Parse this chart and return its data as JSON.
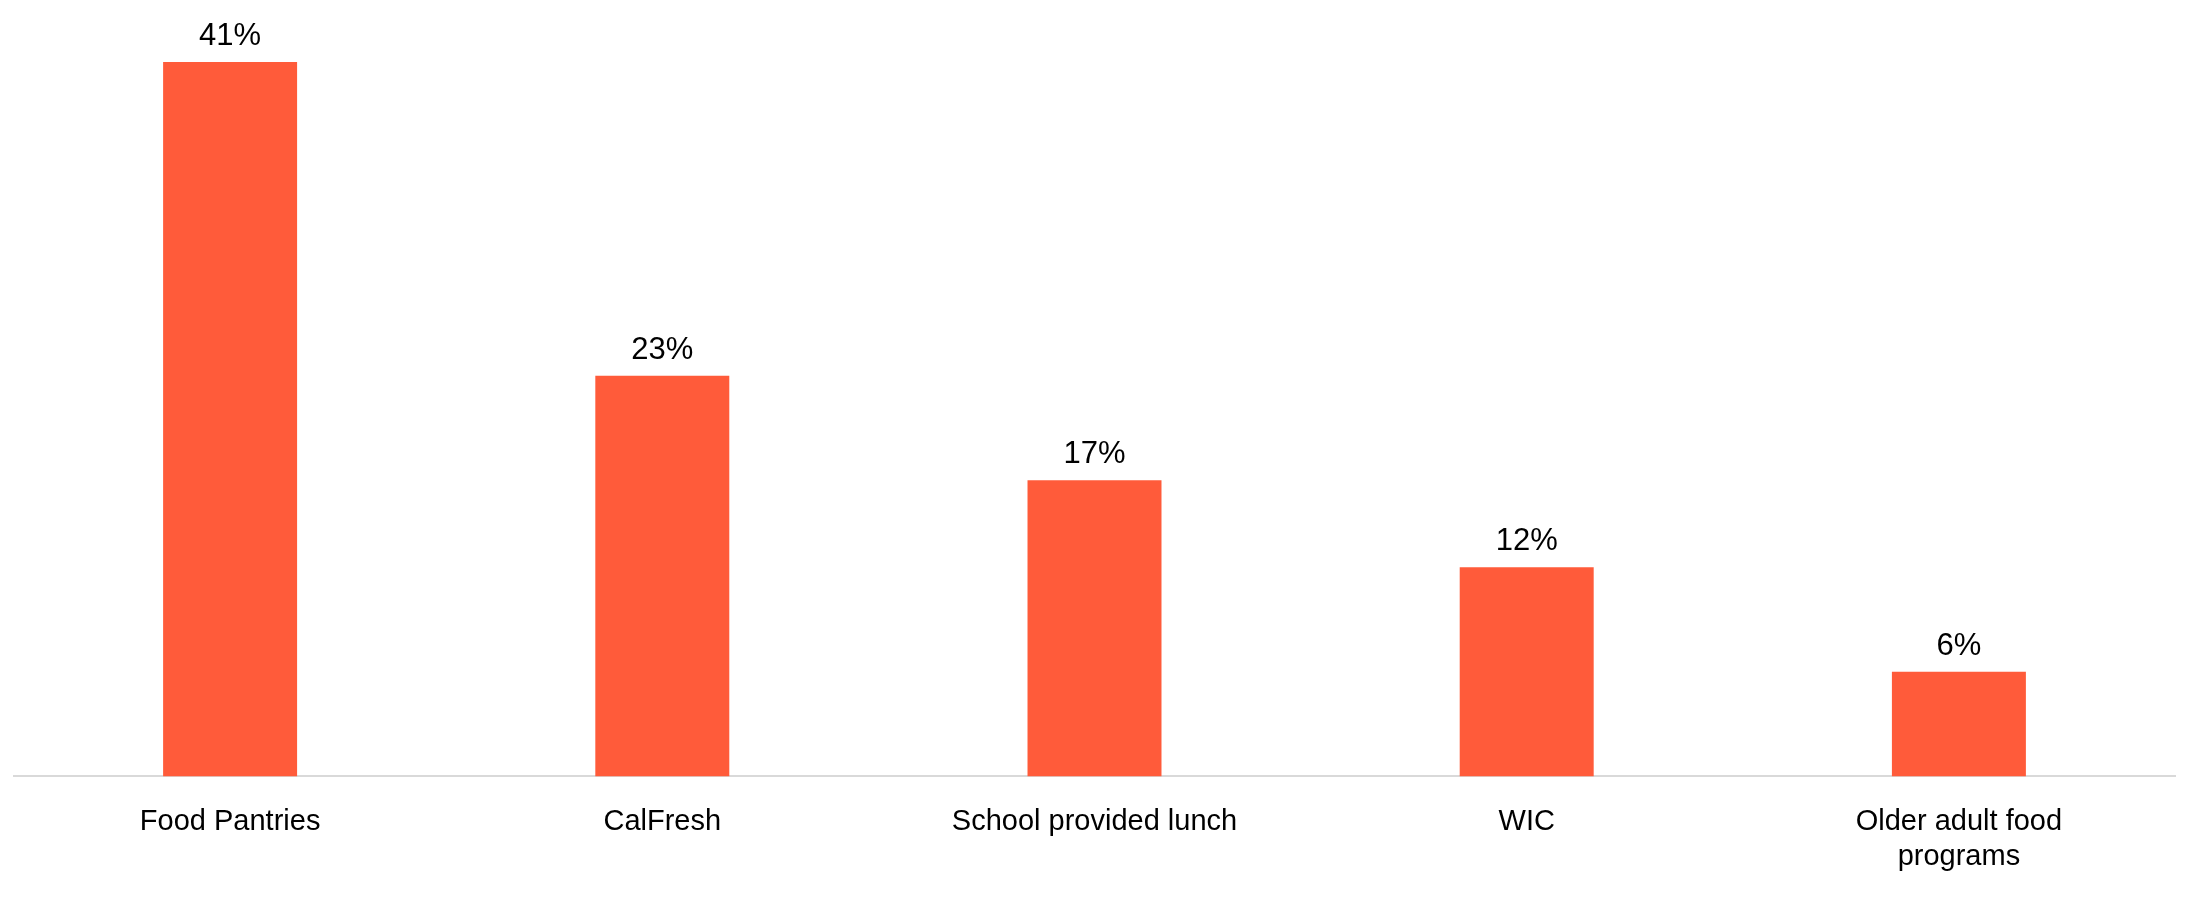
{
  "chart_data": {
    "type": "bar",
    "categories": [
      "Food Pantries",
      "CalFresh",
      "School provided lunch",
      "WIC",
      "Older adult food programs"
    ],
    "values": [
      41,
      23,
      17,
      12,
      6
    ],
    "value_labels": [
      "41%",
      "23%",
      "17%",
      "12%",
      "6%"
    ],
    "color": "#ff5b3a",
    "grid": false,
    "legend": false
  }
}
